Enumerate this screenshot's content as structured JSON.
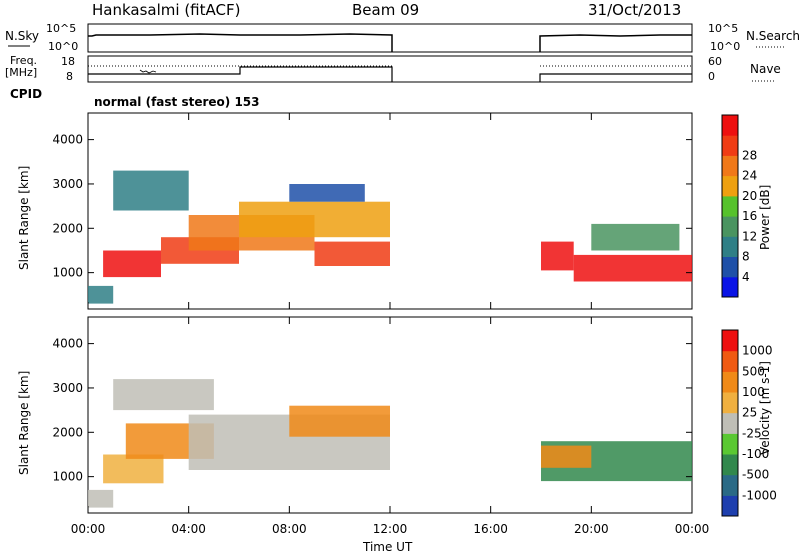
{
  "header": {
    "station": "Hankasalmi (fitACF)",
    "beam": "Beam 09",
    "date": "31/Oct/2013"
  },
  "status_panels": {
    "nsky_label": "N.Sky",
    "nsearch_label": "N.Search",
    "nsky_ticks": [
      "10^5",
      "10^0"
    ],
    "nsearch_ticks": [
      "10^5",
      "10^0"
    ],
    "freq_label_1": "Freq.",
    "freq_label_2": "[MHz]",
    "freq_ticks": [
      "18",
      "8"
    ],
    "nave_label": "Nave",
    "nave_ticks": [
      "60",
      "0"
    ],
    "cpid_label": "CPID",
    "cpid_text": "normal (fast stereo) 153"
  },
  "chart_data": [
    {
      "type": "heatmap",
      "name": "power",
      "ylabel": "Slant Range [km]",
      "xlabel": "Time UT",
      "x_ticks": [
        "00:00",
        "04:00",
        "08:00",
        "12:00",
        "16:00",
        "20:00",
        "00:00"
      ],
      "y_ticks": [
        "1000",
        "2000",
        "3000",
        "4000"
      ],
      "xlim_hours": [
        0,
        24
      ],
      "ylim_km": [
        180,
        4600
      ],
      "data_gap_hours": [
        12,
        18
      ],
      "colorbar_label": "Power [dB]",
      "colorbar_ticks": [
        "4",
        "8",
        "12",
        "16",
        "20",
        "24",
        "28"
      ],
      "colorbar_colors": [
        "#0a14e6",
        "#1e50a8",
        "#2f7f86",
        "#4a9460",
        "#56c22c",
        "#eea010",
        "#f07818",
        "#f03c14",
        "#ee1010"
      ],
      "data": [
        {
          "t0": 0.6,
          "t1": 2.9,
          "r0": 900,
          "r1": 1500,
          "level": 8
        },
        {
          "t0": 2.9,
          "t1": 6.0,
          "r0": 1200,
          "r1": 1800,
          "level": 7
        },
        {
          "t0": 4.0,
          "t1": 9.0,
          "r0": 1500,
          "r1": 2300,
          "level": 6
        },
        {
          "t0": 6.0,
          "t1": 12.0,
          "r0": 1800,
          "r1": 2600,
          "level": 5
        },
        {
          "t0": 9.0,
          "t1": 12.0,
          "r0": 1150,
          "r1": 1700,
          "level": 7
        },
        {
          "t0": 0.0,
          "t1": 1.0,
          "r0": 300,
          "r1": 700,
          "level": 2
        },
        {
          "t0": 1.0,
          "t1": 4.0,
          "r0": 2400,
          "r1": 3300,
          "level": 2
        },
        {
          "t0": 8.0,
          "t1": 11.0,
          "r0": 2600,
          "r1": 3000,
          "level": 1
        },
        {
          "t0": 18.0,
          "t1": 19.3,
          "r0": 1050,
          "r1": 1700,
          "level": 8
        },
        {
          "t0": 19.3,
          "t1": 24.0,
          "r0": 800,
          "r1": 1400,
          "level": 8
        },
        {
          "t0": 20.0,
          "t1": 23.5,
          "r0": 1500,
          "r1": 2100,
          "level": 3
        }
      ]
    },
    {
      "type": "heatmap",
      "name": "velocity",
      "ylabel": "Slant Range [km]",
      "xlabel": "Time UT",
      "x_ticks": [
        "00:00",
        "04:00",
        "08:00",
        "12:00",
        "16:00",
        "20:00",
        "00:00"
      ],
      "y_ticks": [
        "1000",
        "2000",
        "3000",
        "4000"
      ],
      "xlim_hours": [
        0,
        24
      ],
      "ylim_km": [
        180,
        4600
      ],
      "data_gap_hours": [
        12,
        18
      ],
      "colorbar_label": "Velocity [m s-1]",
      "colorbar_ticks": [
        "1000",
        "500",
        "100",
        "25",
        "-25",
        "-100",
        "-500",
        "-1000"
      ],
      "colorbar_colors": [
        "#1e3fae",
        "#2a6a86",
        "#31884c",
        "#5ac832",
        "#bfbeb6",
        "#f0b040",
        "#f08a18",
        "#f05a12",
        "#ee1010"
      ],
      "data": [
        {
          "t0": 0.6,
          "t1": 3.0,
          "r0": 850,
          "r1": 1500,
          "level": 5
        },
        {
          "t0": 1.5,
          "t1": 5.0,
          "r0": 1400,
          "r1": 2200,
          "level": 6
        },
        {
          "t0": 4.0,
          "t1": 12.0,
          "r0": 1150,
          "r1": 2400,
          "level": 4
        },
        {
          "t0": 0.0,
          "t1": 1.0,
          "r0": 300,
          "r1": 700,
          "level": 4
        },
        {
          "t0": 1.0,
          "t1": 5.0,
          "r0": 2500,
          "r1": 3200,
          "level": 4
        },
        {
          "t0": 8.0,
          "t1": 12.0,
          "r0": 1900,
          "r1": 2600,
          "level": 6
        },
        {
          "t0": 18.0,
          "t1": 24.0,
          "r0": 900,
          "r1": 1800,
          "level": 2
        },
        {
          "t0": 18.0,
          "t1": 20.0,
          "r0": 1200,
          "r1": 1700,
          "level": 6
        }
      ]
    }
  ]
}
